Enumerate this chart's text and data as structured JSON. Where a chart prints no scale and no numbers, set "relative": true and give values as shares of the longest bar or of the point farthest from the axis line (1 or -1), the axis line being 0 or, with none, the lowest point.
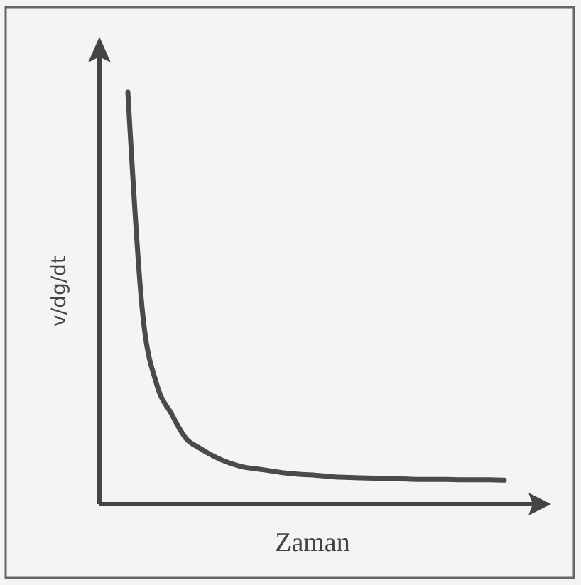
{
  "chart_data": {
    "type": "line",
    "relative": true,
    "xlabel": "Zaman",
    "ylabel": "v/dg/dt",
    "color": "#4a4a4a",
    "categories": [
      null,
      null,
      null,
      null,
      null,
      null,
      null,
      null,
      null,
      null,
      null,
      null,
      null,
      null,
      null,
      null,
      null,
      null,
      null,
      null,
      null,
      null,
      null,
      null,
      null,
      null,
      null
    ],
    "values": [
      1.0,
      0.47,
      0.29,
      0.22,
      0.16,
      0.135,
      0.115,
      0.1,
      0.09,
      0.085,
      0.08,
      0.075,
      0.072,
      0.07,
      0.067,
      0.065,
      0.064,
      0.063,
      0.062,
      0.061,
      0.06,
      0.06,
      0.06,
      0.059,
      0.059,
      0.059,
      0.058
    ]
  }
}
